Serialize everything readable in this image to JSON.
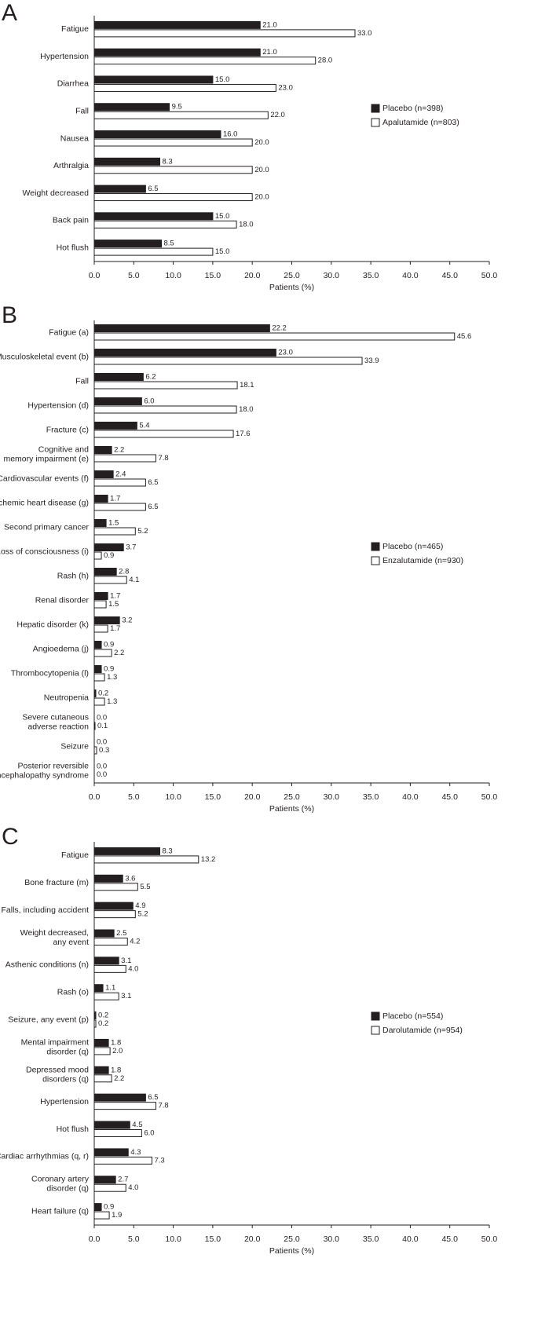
{
  "chart_data": [
    {
      "type": "bar",
      "orientation": "horizontal",
      "label": "A",
      "xlabel": "Patients (%)",
      "categories": [
        "Fatigue",
        "Hypertension",
        "Diarrhea",
        "Fall",
        "Nausea",
        "Arthralgia",
        "Weight decreased",
        "Back pain",
        "Hot flush"
      ],
      "series": [
        {
          "name": "Placebo (n=398)",
          "color": "#231f20",
          "values": [
            21.0,
            21.0,
            15.0,
            9.5,
            16.0,
            8.3,
            6.5,
            15.0,
            8.5
          ],
          "value_labels": [
            "21.0",
            "21.0",
            "15.0",
            "9.5",
            "16.0",
            "8.3",
            "6.5",
            "15.0",
            "8.5"
          ]
        },
        {
          "name": "Apalutamide (n=803)",
          "color": "#ffffff",
          "values": [
            33.0,
            28.0,
            23.0,
            22.0,
            20.0,
            20.0,
            20.0,
            18.0,
            15.0
          ],
          "value_labels": [
            "33.0",
            "28.0",
            "23.0",
            "22.0",
            "20.0",
            "20.0",
            "20.0",
            "18.0",
            "15.0"
          ]
        }
      ],
      "xlim": [
        0,
        50
      ],
      "xticks": [
        {
          "value": 0,
          "label": "0.0"
        },
        {
          "value": 5,
          "label": "5.0"
        },
        {
          "value": 10,
          "label": "10.0"
        },
        {
          "value": 15,
          "label": "15.0"
        },
        {
          "value": 20,
          "label": "20.0"
        },
        {
          "value": 25,
          "label": "25.0"
        },
        {
          "value": 30,
          "label": "30.0"
        },
        {
          "value": 35,
          "label": "35.0"
        },
        {
          "value": 40,
          "label": "40.0"
        },
        {
          "value": 45,
          "label": "45.0"
        },
        {
          "value": 50,
          "label": "50.0"
        }
      ],
      "legend": "right"
    },
    {
      "type": "bar",
      "orientation": "horizontal",
      "label": "B",
      "xlabel": "Patients (%)",
      "categories": [
        "Fatigue (a)",
        "Musculoskeletal event (b)",
        "Fall",
        "Hypertension (d)",
        "Fracture (c)",
        "Cognitive and\nmemory impairment (e)",
        "Cardiovascular events (f)",
        "Ischemic heart disease (g)",
        "Second primary cancer",
        "Loss of consciousness (i)",
        "Rash (h)",
        "Renal disorder",
        "Hepatic disorder (k)",
        "Angioedema (j)",
        "Thrombocytopenia (l)",
        "Neutropenia",
        "Severe cutaneous\nadverse reaction",
        "Seizure",
        "Posterior reversible\nencephalopathy syndrome"
      ],
      "series": [
        {
          "name": "Placebo (n=465)",
          "color": "#231f20",
          "values": [
            22.2,
            23.0,
            6.2,
            6.0,
            5.4,
            2.2,
            2.4,
            1.7,
            1.5,
            3.7,
            2.8,
            1.7,
            3.2,
            0.9,
            0.9,
            0.2,
            0.0,
            0.0,
            0.0
          ],
          "value_labels": [
            "22.2",
            "23.0",
            "6.2",
            "6.0",
            "5.4",
            "2.2",
            "2.4",
            "1.7",
            "1.5",
            "3.7",
            "2.8",
            "1.7",
            "3.2",
            "0.9",
            "0.9",
            "0.2",
            "0.0",
            "0.0",
            "0.0"
          ]
        },
        {
          "name": "Enzalutamide (n=930)",
          "color": "#ffffff",
          "values": [
            45.6,
            33.9,
            18.1,
            18.0,
            17.6,
            7.8,
            6.5,
            6.5,
            5.2,
            0.9,
            4.1,
            1.5,
            1.7,
            2.2,
            1.3,
            1.3,
            0.1,
            0.3,
            0.0
          ],
          "value_labels": [
            "45.6",
            "33.9",
            "18.1",
            "18.0",
            "17.6",
            "7.8",
            "6.5",
            "6.5",
            "5.2",
            "0.9",
            "4.1",
            "1.5",
            "1.7",
            "2.2",
            "1.3",
            "1.3",
            "0.1",
            "0.3",
            "0.0"
          ]
        }
      ],
      "xlim": [
        0,
        50
      ],
      "xticks": [
        {
          "value": 0,
          "label": "0.0"
        },
        {
          "value": 5,
          "label": "5.0"
        },
        {
          "value": 10,
          "label": "10.0"
        },
        {
          "value": 15,
          "label": "15.0"
        },
        {
          "value": 20,
          "label": "20.0"
        },
        {
          "value": 25,
          "label": "25.0"
        },
        {
          "value": 30,
          "label": "30.0"
        },
        {
          "value": 35,
          "label": "35.0"
        },
        {
          "value": 40,
          "label": "40.0"
        },
        {
          "value": 45,
          "label": "45.0"
        },
        {
          "value": 50,
          "label": "50.0"
        }
      ],
      "legend": "right"
    },
    {
      "type": "bar",
      "orientation": "horizontal",
      "label": "C",
      "xlabel": "Patients (%)",
      "categories": [
        "Fatigue",
        "Bone fracture (m)",
        "Falls, including accident",
        "Weight decreased,\nany event",
        "Asthenic conditions (n)",
        "Rash (o)",
        "Seizure, any event (p)",
        "Mental impairment\ndisorder (q)",
        "Depressed mood\ndisorders (q)",
        "Hypertension",
        "Hot flush",
        "Cardiac arrhythmias (q, r)",
        "Coronary artery\ndisorder (q)",
        "Heart failure (q)"
      ],
      "series": [
        {
          "name": "Placebo (n=554)",
          "color": "#231f20",
          "values": [
            8.3,
            3.6,
            4.9,
            2.5,
            3.1,
            1.1,
            0.2,
            1.8,
            1.8,
            6.5,
            4.5,
            4.3,
            2.7,
            0.9
          ],
          "value_labels": [
            "8.3",
            "3.6",
            "4.9",
            "2.5",
            "3.1",
            "1.1",
            "0.2",
            "1.8",
            "1.8",
            "6.5",
            "4.5",
            "4.3",
            "2.7",
            "0.9"
          ]
        },
        {
          "name": "Darolutamide (n=954)",
          "color": "#ffffff",
          "values": [
            13.2,
            5.5,
            5.2,
            4.2,
            4.0,
            3.1,
            0.2,
            2.0,
            2.2,
            7.8,
            6.0,
            7.3,
            4.0,
            1.9
          ],
          "value_labels": [
            "13.2",
            "5.5",
            "5.2",
            "4.2",
            "4.0",
            "3.1",
            "0.2",
            "2.0",
            "2.2",
            "7.8",
            "6.0",
            "7.3",
            "4.0",
            "1.9"
          ]
        }
      ],
      "xlim": [
        0,
        50
      ],
      "xticks": [
        {
          "value": 0,
          "label": "0.0"
        },
        {
          "value": 5,
          "label": "5.0"
        },
        {
          "value": 10,
          "label": "10.0"
        },
        {
          "value": 15,
          "label": "15.0"
        },
        {
          "value": 20,
          "label": "20.0"
        },
        {
          "value": 25,
          "label": "25.0"
        },
        {
          "value": 30,
          "label": "30.0"
        },
        {
          "value": 35,
          "label": "35.0"
        },
        {
          "value": 40,
          "label": "40.0"
        },
        {
          "value": 45,
          "label": "45.0"
        },
        {
          "value": 50,
          "label": "50.0"
        }
      ],
      "legend": "right"
    }
  ]
}
